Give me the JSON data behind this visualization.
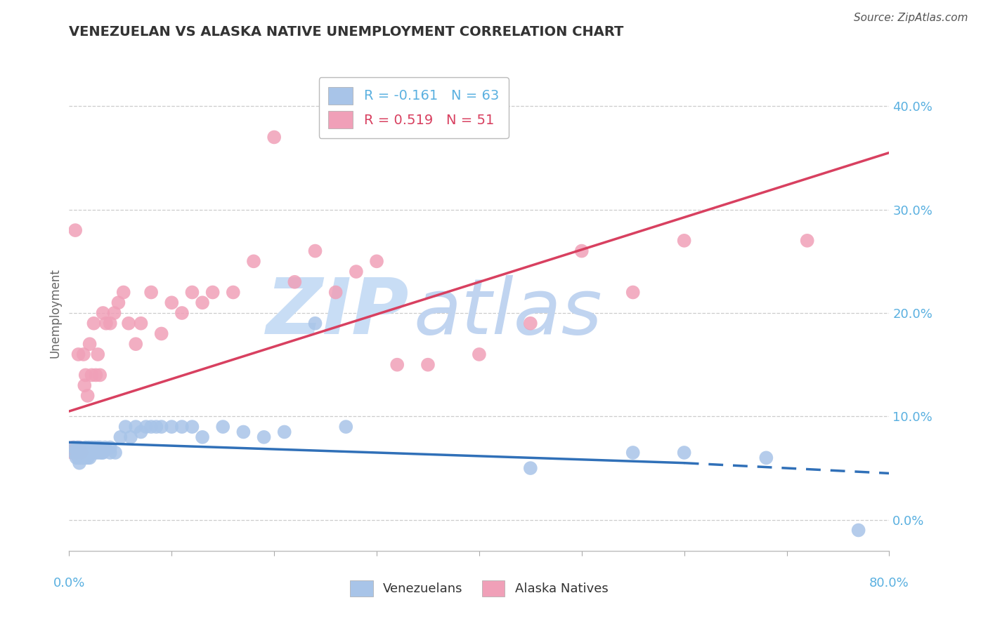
{
  "title": "VENEZUELAN VS ALASKA NATIVE UNEMPLOYMENT CORRELATION CHART",
  "source": "Source: ZipAtlas.com",
  "ylabel_label": "Unemployment",
  "xlim": [
    0.0,
    0.8
  ],
  "ylim": [
    -0.03,
    0.43
  ],
  "venezuelan_R": -0.161,
  "venezuelan_N": 63,
  "alaska_R": 0.519,
  "alaska_N": 51,
  "venezuelan_color": "#a8c4e8",
  "alaska_color": "#f0a0b8",
  "trend_venezuelan_color": "#3070b8",
  "trend_alaska_color": "#d84060",
  "watermark_zip": "ZIP",
  "watermark_atlas": "atlas",
  "watermark_color_zip": "#c8ddf5",
  "watermark_color_atlas": "#c0d4f0",
  "background_color": "#ffffff",
  "grid_color": "#cccccc",
  "ytick_color": "#5ab0e0",
  "ylabel_ticks": [
    0.0,
    0.1,
    0.2,
    0.3,
    0.4
  ],
  "venezuelan_scatter_x": [
    0.005,
    0.005,
    0.007,
    0.008,
    0.008,
    0.009,
    0.009,
    0.01,
    0.01,
    0.01,
    0.01,
    0.012,
    0.012,
    0.013,
    0.014,
    0.015,
    0.015,
    0.016,
    0.017,
    0.018,
    0.018,
    0.019,
    0.02,
    0.02,
    0.021,
    0.022,
    0.023,
    0.025,
    0.025,
    0.027,
    0.028,
    0.03,
    0.03,
    0.032,
    0.033,
    0.035,
    0.04,
    0.04,
    0.045,
    0.05,
    0.055,
    0.06,
    0.065,
    0.07,
    0.075,
    0.08,
    0.085,
    0.09,
    0.1,
    0.11,
    0.12,
    0.13,
    0.15,
    0.17,
    0.19,
    0.21,
    0.24,
    0.27,
    0.45,
    0.55,
    0.6,
    0.68,
    0.77
  ],
  "venezuelan_scatter_y": [
    0.07,
    0.065,
    0.06,
    0.065,
    0.07,
    0.06,
    0.065,
    0.055,
    0.06,
    0.065,
    0.07,
    0.06,
    0.065,
    0.06,
    0.065,
    0.06,
    0.065,
    0.07,
    0.065,
    0.06,
    0.065,
    0.07,
    0.06,
    0.065,
    0.065,
    0.07,
    0.065,
    0.07,
    0.065,
    0.065,
    0.07,
    0.065,
    0.07,
    0.065,
    0.065,
    0.07,
    0.065,
    0.07,
    0.065,
    0.08,
    0.09,
    0.08,
    0.09,
    0.085,
    0.09,
    0.09,
    0.09,
    0.09,
    0.09,
    0.09,
    0.09,
    0.08,
    0.09,
    0.085,
    0.08,
    0.085,
    0.19,
    0.09,
    0.05,
    0.065,
    0.065,
    0.06,
    -0.01
  ],
  "alaska_scatter_x": [
    0.003,
    0.004,
    0.005,
    0.006,
    0.007,
    0.008,
    0.009,
    0.01,
    0.012,
    0.014,
    0.015,
    0.016,
    0.018,
    0.02,
    0.022,
    0.024,
    0.026,
    0.028,
    0.03,
    0.033,
    0.036,
    0.04,
    0.044,
    0.048,
    0.053,
    0.058,
    0.065,
    0.07,
    0.08,
    0.09,
    0.1,
    0.11,
    0.12,
    0.13,
    0.14,
    0.16,
    0.18,
    0.2,
    0.22,
    0.24,
    0.26,
    0.28,
    0.3,
    0.32,
    0.35,
    0.4,
    0.45,
    0.5,
    0.55,
    0.6,
    0.72
  ],
  "alaska_scatter_y": [
    0.065,
    0.07,
    0.068,
    0.28,
    0.065,
    0.07,
    0.16,
    0.07,
    0.065,
    0.16,
    0.13,
    0.14,
    0.12,
    0.17,
    0.14,
    0.19,
    0.14,
    0.16,
    0.14,
    0.2,
    0.19,
    0.19,
    0.2,
    0.21,
    0.22,
    0.19,
    0.17,
    0.19,
    0.22,
    0.18,
    0.21,
    0.2,
    0.22,
    0.21,
    0.22,
    0.22,
    0.25,
    0.37,
    0.23,
    0.26,
    0.22,
    0.24,
    0.25,
    0.15,
    0.15,
    0.16,
    0.19,
    0.26,
    0.22,
    0.27,
    0.27
  ],
  "ven_trend_start_x": 0.0,
  "ven_trend_start_y": 0.075,
  "ven_trend_end_solid_x": 0.6,
  "ven_trend_end_solid_y": 0.055,
  "ven_trend_end_dash_x": 0.8,
  "ven_trend_end_dash_y": 0.045,
  "alaska_trend_start_x": 0.0,
  "alaska_trend_start_y": 0.105,
  "alaska_trend_end_x": 0.8,
  "alaska_trend_end_y": 0.355
}
